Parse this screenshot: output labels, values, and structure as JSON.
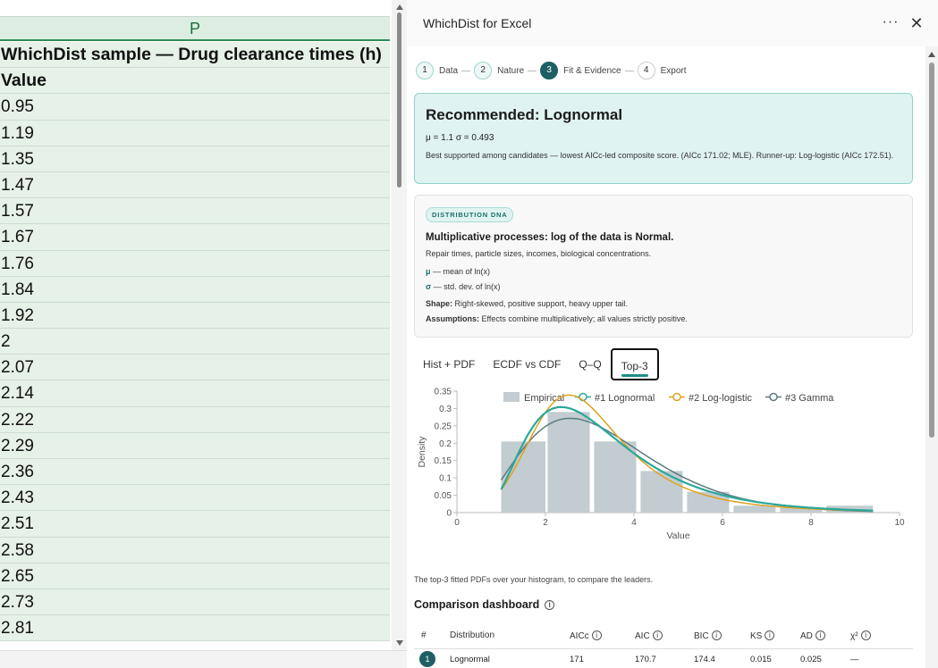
{
  "sheet": {
    "column_letter": "P",
    "title": "WhichDist sample — Drug clearance times (h)",
    "header": "Value",
    "values": [
      "0.95",
      "1.19",
      "1.35",
      "1.47",
      "1.57",
      "1.67",
      "1.76",
      "1.84",
      "1.92",
      "2",
      "2.07",
      "2.14",
      "2.22",
      "2.29",
      "2.36",
      "2.43",
      "2.51",
      "2.58",
      "2.65",
      "2.73",
      "2.81"
    ]
  },
  "pane": {
    "title": "WhichDist for Excel",
    "more_icon": "more-icon",
    "close_icon": "close-icon",
    "steps": [
      {
        "num": "1",
        "label": "Data",
        "state": "done"
      },
      {
        "num": "2",
        "label": "Nature",
        "state": "done"
      },
      {
        "num": "3",
        "label": "Fit & Evidence",
        "state": "active"
      },
      {
        "num": "4",
        "label": "Export",
        "state": "future"
      }
    ],
    "recommendation": {
      "title": "Recommended: Lognormal",
      "params": "μ = 1.1  σ = 0.493",
      "description": "Best supported among candidates — lowest AICc-led composite score. (AICc 171.02; MLE). Runner-up: Log-logistic (AICc 172.51)."
    },
    "dna": {
      "badge": "DISTRIBUTION DNA",
      "headline": "Multiplicative processes: log of the data is Normal.",
      "examples": "Repair times, particle sizes, incomes, biological concentrations.",
      "mu_symbol": "μ",
      "mu_text": " — mean of ln(x)",
      "sigma_symbol": "σ",
      "sigma_text": " — std. dev. of ln(x)",
      "shape_label": "Shape:",
      "shape_text": " Right-skewed, positive support, heavy upper tail.",
      "assumptions_label": "Assumptions:",
      "assumptions_text": " Effects combine multiplicatively; all values strictly positive."
    },
    "tabs": [
      "Hist + PDF",
      "ECDF vs CDF",
      "Q–Q",
      "Top-3"
    ],
    "active_tab": "Top-3",
    "chart_caption": "The top-3 fitted PDFs over your histogram, to compare the leaders.",
    "dashboard": {
      "title": "Comparison dashboard",
      "columns": [
        "#",
        "Distribution",
        "AICc",
        "AIC",
        "BIC",
        "KS",
        "AD",
        "χ²"
      ],
      "rows": [
        {
          "rank": "1",
          "distribution": "Lognormal",
          "aicc": "171",
          "aic": "170.7",
          "bic": "174.4",
          "ks": "0.015",
          "ad": "0.025",
          "chi2": "—"
        }
      ]
    }
  },
  "chart_data": {
    "type": "bar",
    "xlabel": "Value",
    "ylabel": "Density",
    "xlim": [
      0,
      10
    ],
    "ylim": [
      0,
      0.35
    ],
    "xticks": [
      "0",
      "2",
      "4",
      "6",
      "8",
      "10"
    ],
    "yticks": [
      "0",
      "0.05",
      "0.1",
      "0.15",
      "0.2",
      "0.25",
      "0.3",
      "0.35"
    ],
    "legend_position": "top",
    "histogram": {
      "name": "Empirical",
      "color": "#c3ccd0",
      "bins": [
        {
          "x0": 1.0,
          "x1": 2.0,
          "density": 0.205
        },
        {
          "x0": 2.05,
          "x1": 3.0,
          "density": 0.29
        },
        {
          "x0": 3.1,
          "x1": 4.05,
          "density": 0.205
        },
        {
          "x0": 4.15,
          "x1": 5.1,
          "density": 0.12
        },
        {
          "x0": 5.2,
          "x1": 6.15,
          "density": 0.06
        },
        {
          "x0": 6.25,
          "x1": 7.2,
          "density": 0.02
        },
        {
          "x0": 7.3,
          "x1": 8.25,
          "density": 0.015
        },
        {
          "x0": 8.35,
          "x1": 9.4,
          "density": 0.02
        }
      ]
    },
    "series": [
      {
        "name": "#1 Lognormal",
        "color": "#2aa89a",
        "type": "lognormal",
        "mu": 1.1,
        "sigma": 0.493
      },
      {
        "name": "#2 Log-logistic",
        "color": "#e0a21d",
        "type": "loglogistic",
        "alpha": 2.94,
        "beta": 3.7
      },
      {
        "name": "#3 Gamma",
        "color": "#5f7a82",
        "type": "gamma",
        "k": 4.2,
        "theta": 0.8
      }
    ],
    "x_range": [
      1.0,
      9.4
    ]
  }
}
